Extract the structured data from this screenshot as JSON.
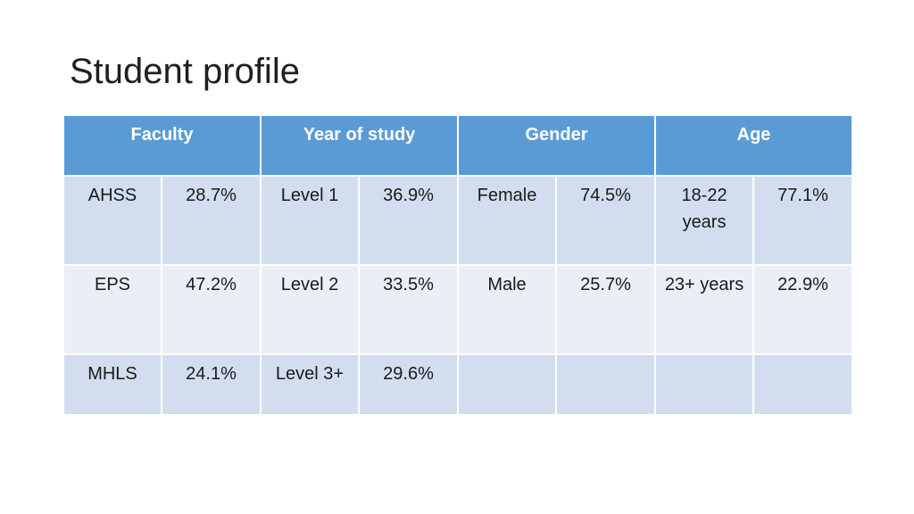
{
  "title": "Student profile",
  "table": {
    "headers": [
      "Faculty",
      "Year of study",
      "Gender",
      "Age"
    ],
    "rows": [
      [
        "AHSS",
        "28.7%",
        "Level 1",
        "36.9%",
        "Female",
        "74.5%",
        "18-22 years",
        "77.1%"
      ],
      [
        "EPS",
        "47.2%",
        "Level 2",
        "33.5%",
        "Male",
        "25.7%",
        "23+ years",
        "22.9%"
      ],
      [
        "MHLS",
        "24.1%",
        "Level 3+",
        "29.6%",
        "",
        "",
        "",
        ""
      ]
    ]
  }
}
